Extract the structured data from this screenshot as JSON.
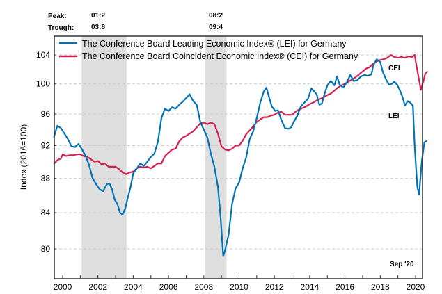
{
  "chart_data": {
    "type": "line",
    "title": "",
    "ylabel": "Index (2016=100)",
    "xlabel": "",
    "y_scale": "log",
    "ylim": [
      77.5,
      107
    ],
    "xlim": [
      1999.5,
      2020.8
    ],
    "yticks": [
      80,
      84,
      88,
      92,
      96,
      100,
      104
    ],
    "xticks": [
      2000,
      2002,
      2004,
      2006,
      2008,
      2010,
      2012,
      2014,
      2016,
      2018,
      2020
    ],
    "grid": "horizontal-dashed",
    "legend_placement": "top-left",
    "legend": [
      "The Conference Board Leading Economic Index® (LEI) for Germany",
      "The Conference Board Coincident Economic Index® (CEI) for Germany"
    ],
    "cycles": {
      "peak_label": "Peak:",
      "trough_label": "Trough:",
      "recessions": [
        {
          "peak": "01:2",
          "trough": "03:8",
          "start": 2001.08,
          "end": 2003.62
        },
        {
          "peak": "08:2",
          "trough": "09:4",
          "start": 2008.08,
          "end": 2009.29
        }
      ]
    },
    "annotations": [
      {
        "text": "CEI",
        "x": 2018.6,
        "y": 102.4
      },
      {
        "text": "LEI",
        "x": 2018.6,
        "y": 96.1
      },
      {
        "text": "Sep '20",
        "x": 2019.7,
        "y": 79.0
      }
    ],
    "series": [
      {
        "name": "LEI",
        "color": "#0072b5",
        "points": [
          [
            1999.5,
            93.0
          ],
          [
            1999.7,
            94.5
          ],
          [
            1999.9,
            94.2
          ],
          [
            2000.1,
            93.5
          ],
          [
            2000.3,
            92.8
          ],
          [
            2000.5,
            91.9
          ],
          [
            2000.7,
            91.8
          ],
          [
            2000.9,
            92.2
          ],
          [
            2001.1,
            91.5
          ],
          [
            2001.3,
            90.7
          ],
          [
            2001.5,
            89.6
          ],
          [
            2001.7,
            88.0
          ],
          [
            2001.9,
            87.3
          ],
          [
            2002.1,
            86.7
          ],
          [
            2002.3,
            86.5
          ],
          [
            2002.5,
            87.3
          ],
          [
            2002.65,
            87.4
          ],
          [
            2002.8,
            86.7
          ],
          [
            2002.95,
            85.5
          ],
          [
            2003.1,
            85.0
          ],
          [
            2003.25,
            84.0
          ],
          [
            2003.4,
            83.8
          ],
          [
            2003.55,
            84.5
          ],
          [
            2003.7,
            85.8
          ],
          [
            2003.85,
            87.0
          ],
          [
            2004.0,
            88.6
          ],
          [
            2004.2,
            89.2
          ],
          [
            2004.4,
            89.8
          ],
          [
            2004.6,
            89.5
          ],
          [
            2004.8,
            90.0
          ],
          [
            2005.0,
            90.6
          ],
          [
            2005.2,
            91.0
          ],
          [
            2005.4,
            92.5
          ],
          [
            2005.6,
            95.5
          ],
          [
            2005.8,
            96.7
          ],
          [
            2006.0,
            96.4
          ],
          [
            2006.2,
            96.9
          ],
          [
            2006.4,
            96.7
          ],
          [
            2006.6,
            97.2
          ],
          [
            2006.8,
            97.6
          ],
          [
            2007.0,
            98.1
          ],
          [
            2007.2,
            98.6
          ],
          [
            2007.4,
            97.7
          ],
          [
            2007.6,
            97.2
          ],
          [
            2007.8,
            95.0
          ],
          [
            2008.0,
            94.0
          ],
          [
            2008.2,
            93.0
          ],
          [
            2008.4,
            91.0
          ],
          [
            2008.6,
            89.4
          ],
          [
            2008.8,
            87.0
          ],
          [
            2008.95,
            83.5
          ],
          [
            2009.1,
            79.2
          ],
          [
            2009.2,
            79.8
          ],
          [
            2009.4,
            81.5
          ],
          [
            2009.6,
            85.0
          ],
          [
            2009.8,
            86.8
          ],
          [
            2010.0,
            87.5
          ],
          [
            2010.2,
            89.2
          ],
          [
            2010.4,
            90.5
          ],
          [
            2010.6,
            92.8
          ],
          [
            2010.8,
            93.8
          ],
          [
            2011.0,
            95.5
          ],
          [
            2011.2,
            97.5
          ],
          [
            2011.4,
            99.0
          ],
          [
            2011.55,
            99.5
          ],
          [
            2011.7,
            98.2
          ],
          [
            2011.85,
            97.0
          ],
          [
            2012.05,
            96.4
          ],
          [
            2012.2,
            96.5
          ],
          [
            2012.4,
            95.2
          ],
          [
            2012.6,
            94.2
          ],
          [
            2012.8,
            94.1
          ],
          [
            2012.95,
            94.3
          ],
          [
            2013.1,
            95.0
          ],
          [
            2013.3,
            95.8
          ],
          [
            2013.5,
            97.0
          ],
          [
            2013.7,
            97.5
          ],
          [
            2013.9,
            98.0
          ],
          [
            2014.1,
            99.4
          ],
          [
            2014.25,
            99.0
          ],
          [
            2014.4,
            98.6
          ],
          [
            2014.55,
            97.2
          ],
          [
            2014.7,
            97.4
          ],
          [
            2014.85,
            98.7
          ],
          [
            2015.0,
            99.8
          ],
          [
            2015.2,
            100.4
          ],
          [
            2015.4,
            99.8
          ],
          [
            2015.55,
            101.0
          ],
          [
            2015.7,
            99.9
          ],
          [
            2015.9,
            99.5
          ],
          [
            2016.1,
            100.2
          ],
          [
            2016.3,
            101.2
          ],
          [
            2016.5,
            100.4
          ],
          [
            2016.7,
            100.5
          ],
          [
            2016.9,
            101.0
          ],
          [
            2017.1,
            101.2
          ],
          [
            2017.3,
            101.1
          ],
          [
            2017.5,
            101.3
          ],
          [
            2017.6,
            102.5
          ],
          [
            2017.8,
            103.4
          ],
          [
            2018.0,
            103.0
          ],
          [
            2018.15,
            101.6
          ],
          [
            2018.35,
            100.5
          ],
          [
            2018.5,
            99.9
          ],
          [
            2018.65,
            100.0
          ],
          [
            2018.8,
            100.3
          ],
          [
            2018.95,
            99.9
          ],
          [
            2019.1,
            99.2
          ],
          [
            2019.25,
            98.3
          ],
          [
            2019.4,
            97.1
          ],
          [
            2019.55,
            97.7
          ],
          [
            2019.7,
            97.5
          ],
          [
            2019.85,
            97.1
          ],
          [
            2019.95,
            92.0
          ],
          [
            2020.1,
            87.0
          ],
          [
            2020.2,
            86.1
          ],
          [
            2020.35,
            90.0
          ],
          [
            2020.5,
            92.4
          ],
          [
            2020.65,
            92.6
          ]
        ]
      },
      {
        "name": "CEI",
        "color": "#d4204e",
        "points": [
          [
            1999.5,
            89.7
          ],
          [
            1999.7,
            90.2
          ],
          [
            1999.9,
            90.4
          ],
          [
            2000.0,
            90.9
          ],
          [
            2000.2,
            90.7
          ],
          [
            2000.4,
            90.8
          ],
          [
            2000.6,
            90.8
          ],
          [
            2000.8,
            90.9
          ],
          [
            2001.0,
            90.9
          ],
          [
            2001.2,
            90.7
          ],
          [
            2001.4,
            90.6
          ],
          [
            2001.6,
            90.3
          ],
          [
            2001.8,
            90.0
          ],
          [
            2002.0,
            90.1
          ],
          [
            2002.2,
            89.7
          ],
          [
            2002.4,
            89.8
          ],
          [
            2002.6,
            89.4
          ],
          [
            2002.8,
            89.4
          ],
          [
            2003.0,
            89.4
          ],
          [
            2003.2,
            89.1
          ],
          [
            2003.4,
            88.7
          ],
          [
            2003.6,
            88.5
          ],
          [
            2003.8,
            88.7
          ],
          [
            2004.0,
            88.8
          ],
          [
            2004.2,
            89.2
          ],
          [
            2004.4,
            89.4
          ],
          [
            2004.6,
            89.3
          ],
          [
            2004.8,
            89.4
          ],
          [
            2005.0,
            89.2
          ],
          [
            2005.2,
            89.5
          ],
          [
            2005.4,
            89.8
          ],
          [
            2005.6,
            89.8
          ],
          [
            2005.8,
            90.7
          ],
          [
            2006.0,
            91.1
          ],
          [
            2006.2,
            91.5
          ],
          [
            2006.4,
            91.6
          ],
          [
            2006.6,
            92.5
          ],
          [
            2006.8,
            93.0
          ],
          [
            2007.0,
            93.2
          ],
          [
            2007.2,
            93.5
          ],
          [
            2007.4,
            93.8
          ],
          [
            2007.6,
            94.3
          ],
          [
            2007.8,
            94.8
          ],
          [
            2008.0,
            94.9
          ],
          [
            2008.2,
            94.7
          ],
          [
            2008.4,
            94.9
          ],
          [
            2008.6,
            94.7
          ],
          [
            2008.8,
            93.5
          ],
          [
            2009.0,
            91.9
          ],
          [
            2009.2,
            91.5
          ],
          [
            2009.4,
            91.4
          ],
          [
            2009.6,
            91.6
          ],
          [
            2009.8,
            92.0
          ],
          [
            2010.0,
            92.0
          ],
          [
            2010.2,
            92.6
          ],
          [
            2010.4,
            93.4
          ],
          [
            2010.6,
            93.9
          ],
          [
            2010.8,
            94.4
          ],
          [
            2011.0,
            95.0
          ],
          [
            2011.2,
            95.3
          ],
          [
            2011.4,
            95.6
          ],
          [
            2011.6,
            95.6
          ],
          [
            2011.8,
            95.8
          ],
          [
            2012.0,
            95.9
          ],
          [
            2012.2,
            96.2
          ],
          [
            2012.4,
            96.3
          ],
          [
            2012.6,
            95.9
          ],
          [
            2012.8,
            95.9
          ],
          [
            2013.0,
            95.9
          ],
          [
            2013.2,
            96.3
          ],
          [
            2013.4,
            96.6
          ],
          [
            2013.6,
            96.8
          ],
          [
            2013.8,
            97.0
          ],
          [
            2014.0,
            97.3
          ],
          [
            2014.2,
            97.5
          ],
          [
            2014.4,
            97.8
          ],
          [
            2014.6,
            98.0
          ],
          [
            2014.8,
            98.2
          ],
          [
            2015.0,
            98.5
          ],
          [
            2015.2,
            98.7
          ],
          [
            2015.4,
            99.1
          ],
          [
            2015.6,
            99.5
          ],
          [
            2015.8,
            99.8
          ],
          [
            2016.0,
            100.0
          ],
          [
            2016.2,
            100.3
          ],
          [
            2016.4,
            100.6
          ],
          [
            2016.6,
            100.9
          ],
          [
            2016.8,
            101.3
          ],
          [
            2017.0,
            101.7
          ],
          [
            2017.2,
            102.1
          ],
          [
            2017.4,
            102.3
          ],
          [
            2017.6,
            102.8
          ],
          [
            2017.8,
            103.1
          ],
          [
            2018.0,
            103.3
          ],
          [
            2018.2,
            103.4
          ],
          [
            2018.4,
            103.6
          ],
          [
            2018.6,
            104.0
          ],
          [
            2018.8,
            103.7
          ],
          [
            2019.0,
            103.6
          ],
          [
            2019.2,
            103.7
          ],
          [
            2019.4,
            103.6
          ],
          [
            2019.6,
            103.8
          ],
          [
            2019.8,
            103.7
          ],
          [
            2019.95,
            104.0
          ],
          [
            2020.05,
            102.5
          ],
          [
            2020.2,
            100.5
          ],
          [
            2020.3,
            99.2
          ],
          [
            2020.45,
            100.4
          ],
          [
            2020.55,
            101.4
          ],
          [
            2020.7,
            101.7
          ]
        ]
      }
    ]
  }
}
